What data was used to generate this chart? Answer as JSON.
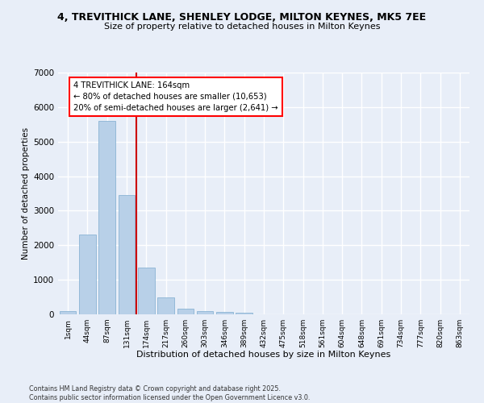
{
  "title1": "4, TREVITHICK LANE, SHENLEY LODGE, MILTON KEYNES, MK5 7EE",
  "title2": "Size of property relative to detached houses in Milton Keynes",
  "xlabel": "Distribution of detached houses by size in Milton Keynes",
  "ylabel": "Number of detached properties",
  "bar_labels": [
    "1sqm",
    "44sqm",
    "87sqm",
    "131sqm",
    "174sqm",
    "217sqm",
    "260sqm",
    "303sqm",
    "346sqm",
    "389sqm",
    "432sqm",
    "475sqm",
    "518sqm",
    "561sqm",
    "604sqm",
    "648sqm",
    "691sqm",
    "734sqm",
    "777sqm",
    "820sqm",
    "863sqm"
  ],
  "bar_values": [
    100,
    2300,
    5600,
    3450,
    1350,
    500,
    175,
    100,
    70,
    40,
    0,
    0,
    0,
    0,
    0,
    0,
    0,
    0,
    0,
    0,
    0
  ],
  "bar_color": "#b8d0e8",
  "bar_edgecolor": "#8ab4d4",
  "vline_x": 3.5,
  "vline_color": "#cc0000",
  "annotation_title": "4 TREVITHICK LANE: 164sqm",
  "annotation_line1": "← 80% of detached houses are smaller (10,653)",
  "annotation_line2": "20% of semi-detached houses are larger (2,641) →",
  "ylim": [
    0,
    7000
  ],
  "yticks": [
    0,
    1000,
    2000,
    3000,
    4000,
    5000,
    6000,
    7000
  ],
  "background_color": "#e8eef8",
  "grid_color": "#ffffff",
  "footer1": "Contains HM Land Registry data © Crown copyright and database right 2025.",
  "footer2": "Contains public sector information licensed under the Open Government Licence v3.0."
}
